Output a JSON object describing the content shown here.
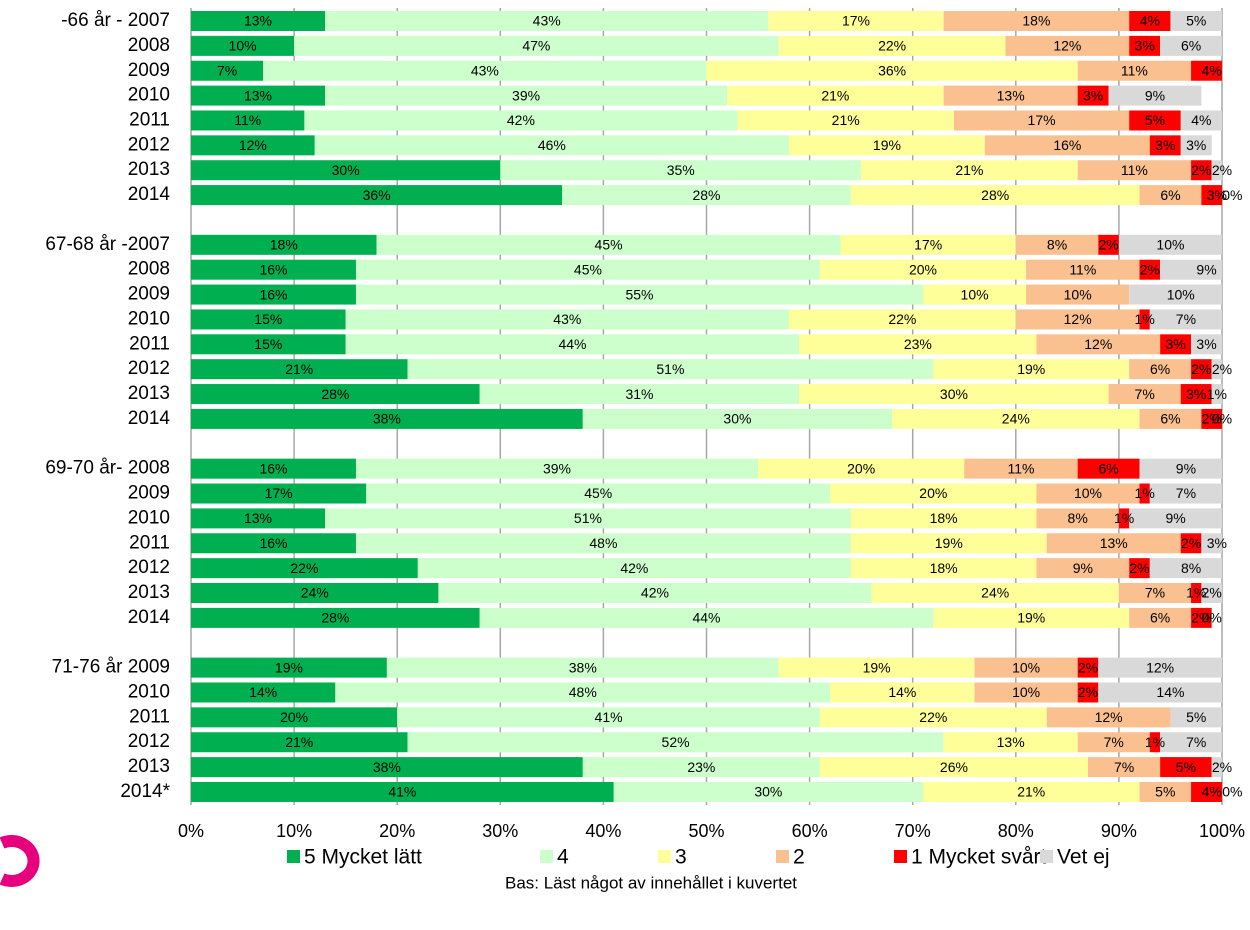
{
  "chart_data": {
    "type": "stacked-bar-horizontal",
    "categories": [
      "-66 år - 2007",
      "2008",
      "2009",
      "2010",
      "2011",
      "2012",
      "2013",
      "2014",
      null,
      "67-68 år -2007",
      "2008",
      "2009",
      "2010",
      "2011",
      "2012",
      "2013",
      "2014",
      null,
      "69-70 år- 2008",
      "2009",
      "2010",
      "2011",
      "2012",
      "2013",
      "2014",
      null,
      "71-76 år 2009",
      "2010",
      "2011",
      "2012",
      "2013",
      "2014*"
    ],
    "series": [
      {
        "name": "5 Mycket lätt",
        "color": "#00b050",
        "values": [
          13,
          10,
          7,
          13,
          11,
          12,
          30,
          36,
          null,
          18,
          16,
          16,
          15,
          15,
          21,
          28,
          38,
          null,
          16,
          17,
          13,
          16,
          22,
          24,
          28,
          null,
          19,
          14,
          20,
          21,
          38,
          41
        ],
        "value_labels": [
          "13%",
          "10%",
          "7%",
          "13%",
          "11%",
          "12%",
          "30%",
          "36%",
          null,
          "18%",
          "16%",
          "16%",
          "15%",
          "15%",
          "21%",
          "28%",
          "38%",
          null,
          "16%",
          "17%",
          "13%",
          "16%",
          "22%",
          "24%",
          "28%",
          null,
          "19%",
          "14%",
          "20%",
          "21%",
          "38%",
          "41%"
        ]
      },
      {
        "name": "4",
        "color": "#ccffcc",
        "values": [
          43,
          47,
          43,
          39,
          42,
          46,
          35,
          28,
          null,
          45,
          45,
          55,
          43,
          44,
          51,
          31,
          30,
          null,
          39,
          45,
          51,
          48,
          42,
          42,
          44,
          null,
          38,
          48,
          41,
          52,
          23,
          30
        ],
        "value_labels": [
          "43%",
          "47%",
          "43%",
          "39%",
          "42%",
          "46%",
          "35%",
          "28%",
          null,
          "45%",
          "45%",
          "55%",
          "43%",
          "44%",
          "51%",
          "31%",
          "30%",
          null,
          "39%",
          "45%",
          "51%",
          "48%",
          "42%",
          "42%",
          "44%",
          null,
          "38%",
          "48%",
          "41%",
          "52%",
          "23%",
          "30%"
        ]
      },
      {
        "name": "3",
        "color": "#ffff99",
        "values": [
          17,
          22,
          36,
          21,
          21,
          19,
          21,
          28,
          null,
          17,
          20,
          10,
          22,
          23,
          19,
          30,
          24,
          null,
          20,
          20,
          18,
          19,
          18,
          24,
          19,
          null,
          19,
          14,
          22,
          13,
          26,
          21
        ],
        "value_labels": [
          "17%",
          "22%",
          "36%",
          "21%",
          "21%",
          "19%",
          "21%",
          "28%",
          null,
          "17%",
          "20%",
          "10%",
          "22%",
          "23%",
          "19%",
          "30%",
          "24%",
          null,
          "20%",
          "20%",
          "18%",
          "19%",
          "18%",
          "24%",
          "19%",
          null,
          "19%",
          "14%",
          "22%",
          "13%",
          "26%",
          "21%"
        ]
      },
      {
        "name": "2",
        "color": "#fac090",
        "values": [
          18,
          12,
          11,
          13,
          17,
          16,
          11,
          6,
          null,
          8,
          11,
          10,
          12,
          12,
          6,
          7,
          6,
          null,
          11,
          10,
          8,
          13,
          9,
          7,
          6,
          null,
          10,
          10,
          12,
          7,
          7,
          5
        ],
        "value_labels": [
          "18%",
          "12%",
          "11%",
          "13%",
          "17%",
          "16%",
          "11%",
          "6%",
          null,
          "8%",
          "11%",
          "10%",
          "12%",
          "12%",
          "6%",
          "7%",
          "6%",
          null,
          "11%",
          "10%",
          "8%",
          "13%",
          "9%",
          "7%",
          "6%",
          null,
          "10%",
          "10%",
          "12%",
          "7%",
          "7%",
          "5%"
        ]
      },
      {
        "name": "1 Mycket svårt",
        "color": "#ff0000",
        "values": [
          4,
          3,
          4,
          3,
          5,
          3,
          2,
          3,
          null,
          2,
          2,
          null,
          1,
          3,
          2,
          3,
          2,
          null,
          6,
          1,
          1,
          2,
          2,
          1,
          2,
          null,
          2,
          2,
          null,
          1,
          5,
          4
        ],
        "value_labels": [
          "4%",
          "3%",
          "4%",
          "3%",
          "5%",
          "3%",
          "2%",
          "3%",
          null,
          "2%",
          "2%",
          null,
          "1%",
          "3%",
          "2%",
          "3%",
          "2%",
          null,
          "6%",
          "1%",
          "1%",
          "2%",
          "2%",
          "1%",
          "2%",
          null,
          "2%",
          "2%",
          null,
          "1%",
          "5%",
          "4%"
        ]
      },
      {
        "name": "Vet ej",
        "color": "#d9d9d9",
        "values": [
          5,
          6,
          null,
          9,
          4,
          3,
          2,
          0,
          null,
          10,
          9,
          10,
          7,
          3,
          2,
          1,
          0,
          null,
          9,
          7,
          9,
          3,
          8,
          2,
          0,
          null,
          12,
          14,
          5,
          7,
          2,
          0
        ],
        "value_labels": [
          "5%",
          "6%",
          null,
          "9%",
          "4%",
          "3%",
          "2%",
          "0%",
          null,
          "10%",
          "9%",
          "10%",
          "7%",
          "3%",
          "2%",
          "1%",
          "0%",
          null,
          "9%",
          "7%",
          "9%",
          "3%",
          "8%",
          "2%",
          "0%",
          null,
          "12%",
          "14%",
          "5%",
          "7%",
          "2%",
          "0%"
        ]
      }
    ],
    "xlim": [
      0,
      100
    ],
    "xticks": [
      {
        "value": 0,
        "label": "0%"
      },
      {
        "value": 10,
        "label": "10%"
      },
      {
        "value": 20,
        "label": "20%"
      },
      {
        "value": 30,
        "label": "30%"
      },
      {
        "value": 40,
        "label": "40%"
      },
      {
        "value": 50,
        "label": "50%"
      },
      {
        "value": 60,
        "label": "60%"
      },
      {
        "value": 70,
        "label": "70%"
      },
      {
        "value": 80,
        "label": "80%"
      },
      {
        "value": 90,
        "label": "90%"
      },
      {
        "value": 100,
        "label": "100%"
      }
    ],
    "grid": true,
    "legend": "bottom",
    "footnote": "Bas: Läst något av innehållet i kuvertet"
  }
}
